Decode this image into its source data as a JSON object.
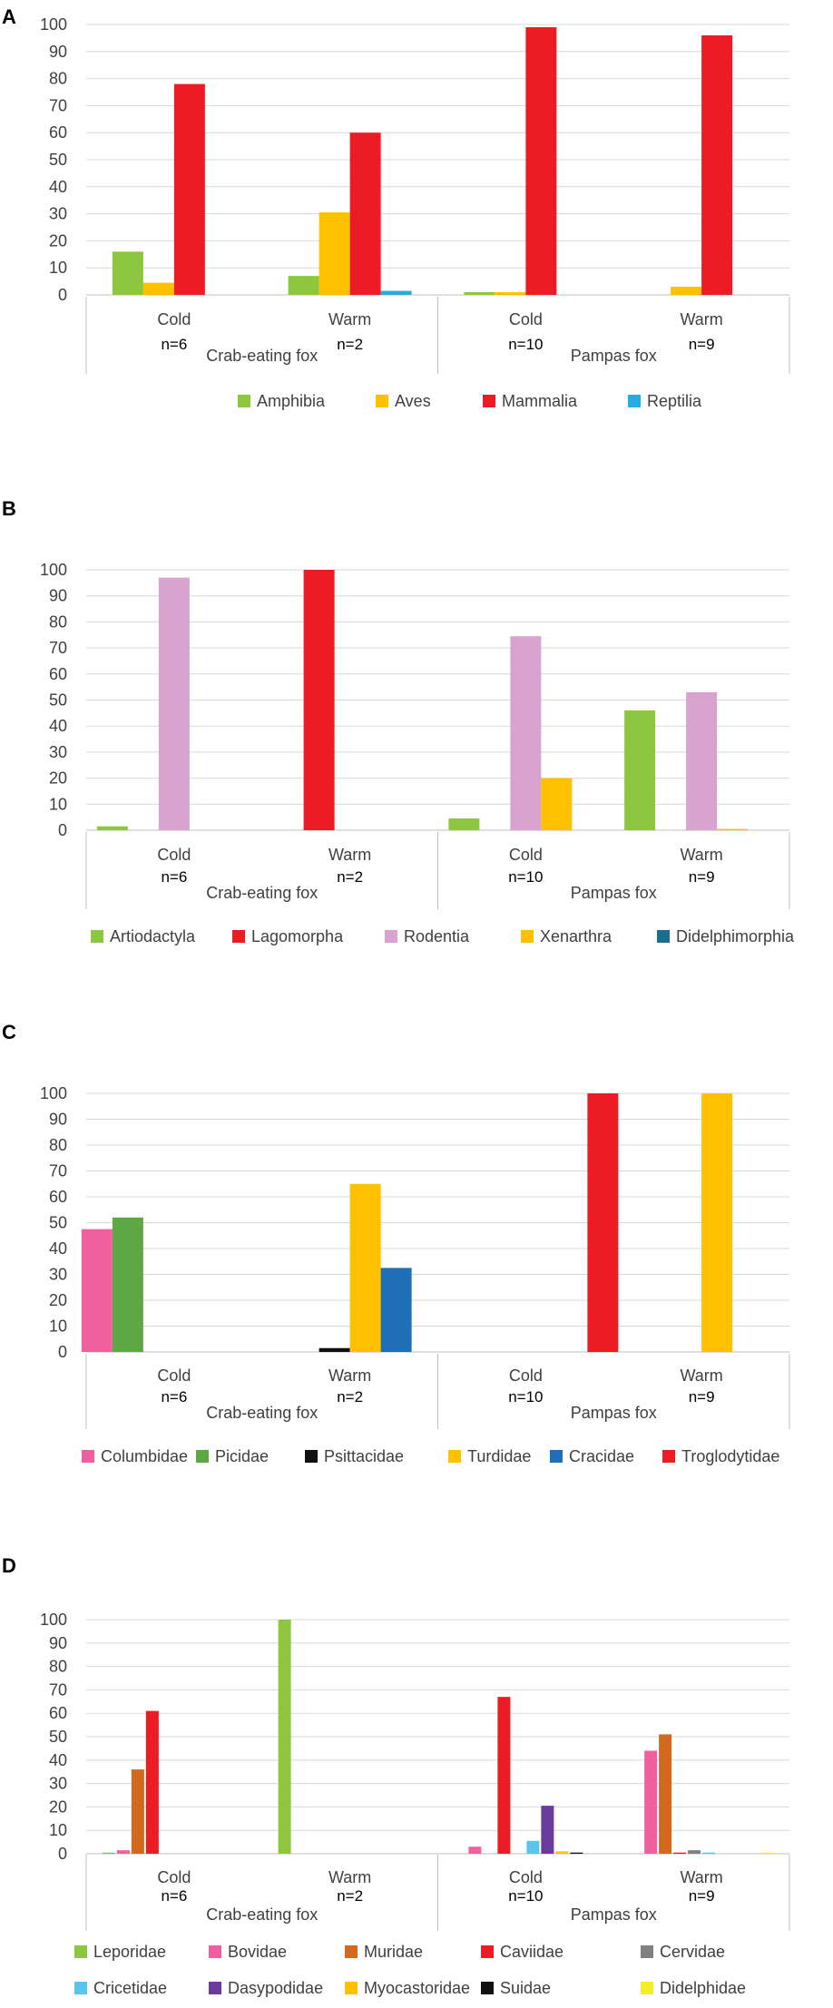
{
  "chart_data": [
    {
      "panel": "A",
      "type": "bar",
      "ylim": [
        0,
        100
      ],
      "yticks": [
        0,
        10,
        20,
        30,
        40,
        50,
        60,
        70,
        80,
        90,
        100
      ],
      "categories": [
        "Cold",
        "Warm",
        "Cold",
        "Warm"
      ],
      "sample_sizes": [
        "n=6",
        "n=2",
        "n=10",
        "n=9"
      ],
      "groups": [
        {
          "label": "Crab-eating fox",
          "span": [
            0,
            1
          ]
        },
        {
          "label": "Pampas fox",
          "span": [
            2,
            3
          ]
        }
      ],
      "series": [
        {
          "name": "Amphibia",
          "color": "#8DC63F",
          "values": [
            16,
            7,
            1,
            0
          ]
        },
        {
          "name": "Aves",
          "color": "#FFC000",
          "values": [
            4.5,
            30.5,
            1,
            3
          ]
        },
        {
          "name": "Mammalia",
          "color": "#ED1C24",
          "values": [
            78,
            60,
            99,
            96
          ]
        },
        {
          "name": "Reptilia",
          "color": "#29ABE2",
          "values": [
            0,
            1.5,
            0,
            0
          ]
        }
      ]
    },
    {
      "panel": "B",
      "type": "bar",
      "ylim": [
        0,
        100
      ],
      "yticks": [
        0,
        10,
        20,
        30,
        40,
        50,
        60,
        70,
        80,
        90,
        100
      ],
      "categories": [
        "Cold",
        "Warm",
        "Cold",
        "Warm"
      ],
      "sample_sizes": [
        "n=6",
        "n=2",
        "n=10",
        "n=9"
      ],
      "groups": [
        {
          "label": "Crab-eating fox",
          "span": [
            0,
            1
          ]
        },
        {
          "label": "Pampas fox",
          "span": [
            2,
            3
          ]
        }
      ],
      "series": [
        {
          "name": "Artiodactyla",
          "color": "#8DC63F",
          "values": [
            1.5,
            0,
            4.5,
            46
          ]
        },
        {
          "name": "Lagomorpha",
          "color": "#ED1C24",
          "values": [
            0,
            100,
            0,
            0
          ]
        },
        {
          "name": "Rodentia",
          "color": "#D8A3CE",
          "values": [
            97,
            0,
            74.5,
            53
          ]
        },
        {
          "name": "Xenarthra",
          "color": "#FFC000",
          "values": [
            0,
            0,
            20,
            0.5
          ]
        },
        {
          "name": "Didelphimorphia",
          "color": "#1B6E8C",
          "values": [
            0,
            0,
            0,
            0
          ]
        }
      ]
    },
    {
      "panel": "C",
      "type": "bar",
      "ylim": [
        0,
        100
      ],
      "yticks": [
        0,
        10,
        20,
        30,
        40,
        50,
        60,
        70,
        80,
        90,
        100
      ],
      "categories": [
        "Cold",
        "Warm",
        "Cold",
        "Warm"
      ],
      "sample_sizes": [
        "n=6",
        "n=2",
        "n=10",
        "n=9"
      ],
      "groups": [
        {
          "label": "Crab-eating fox",
          "span": [
            0,
            1
          ]
        },
        {
          "label": "Pampas fox",
          "span": [
            2,
            3
          ]
        }
      ],
      "series": [
        {
          "name": "Columbidae",
          "color": "#F0609E",
          "values": [
            47.5,
            0,
            0,
            0
          ]
        },
        {
          "name": "Picidae",
          "color": "#5DA843",
          "values": [
            52,
            0,
            0,
            0
          ]
        },
        {
          "name": "Psittacidae",
          "color": "#111111",
          "values": [
            0,
            1.5,
            0,
            0
          ]
        },
        {
          "name": "Turdidae",
          "color": "#FFC000",
          "values": [
            0,
            65,
            0,
            100
          ]
        },
        {
          "name": "Cracidae",
          "color": "#1F6FB7",
          "values": [
            0,
            32.5,
            0,
            0
          ]
        },
        {
          "name": "Troglodytidae",
          "color": "#ED1C24",
          "values": [
            0,
            0,
            100,
            0
          ]
        }
      ]
    },
    {
      "panel": "D",
      "type": "bar",
      "ylim": [
        0,
        100
      ],
      "yticks": [
        0,
        10,
        20,
        30,
        40,
        50,
        60,
        70,
        80,
        90,
        100
      ],
      "categories": [
        "Cold",
        "Warm",
        "Cold",
        "Warm"
      ],
      "sample_sizes": [
        "n=6",
        "n=2",
        "n=10",
        "n=9"
      ],
      "groups": [
        {
          "label": "Crab-eating fox",
          "span": [
            0,
            1
          ]
        },
        {
          "label": "Pampas fox",
          "span": [
            2,
            3
          ]
        }
      ],
      "series": [
        {
          "name": "Leporidae",
          "color": "#8DC63F",
          "values": [
            0.5,
            100,
            0,
            0
          ]
        },
        {
          "name": "Bovidae",
          "color": "#F0609E",
          "values": [
            1.5,
            0,
            3,
            44
          ]
        },
        {
          "name": "Muridae",
          "color": "#D2691E",
          "values": [
            36,
            0,
            0,
            51
          ]
        },
        {
          "name": "Caviidae",
          "color": "#ED1C24",
          "values": [
            61,
            0,
            67,
            0.5
          ]
        },
        {
          "name": "Cervidae",
          "color": "#808080",
          "values": [
            0,
            0,
            0,
            1.5
          ]
        },
        {
          "name": "Cricetidae",
          "color": "#5BC4EA",
          "values": [
            0,
            0,
            5.5,
            0.5
          ]
        },
        {
          "name": "Dasypodidae",
          "color": "#6A3A9C",
          "values": [
            0,
            0,
            20.5,
            0
          ]
        },
        {
          "name": "Myocastoridae",
          "color": "#FFC000",
          "values": [
            0,
            0,
            1,
            0
          ]
        },
        {
          "name": "Suidae",
          "color": "#111111",
          "values": [
            0,
            0,
            0.5,
            0
          ]
        },
        {
          "name": "Didelphidae",
          "color": "#F5EC2A",
          "values": [
            0,
            0,
            0,
            0.5
          ]
        }
      ]
    }
  ]
}
